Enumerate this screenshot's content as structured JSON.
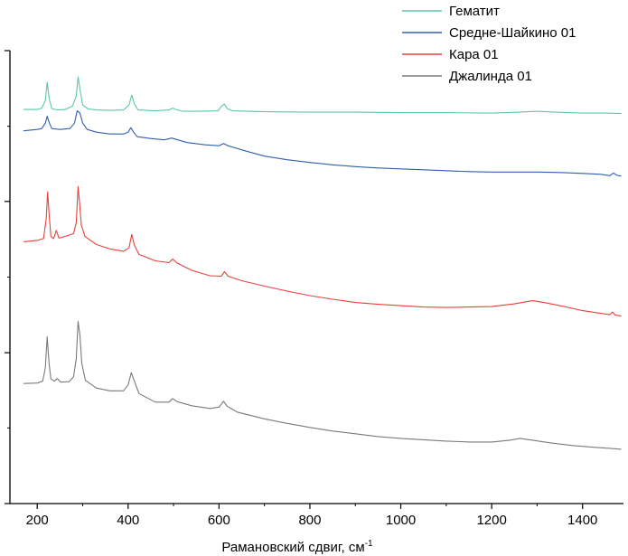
{
  "chart_data": {
    "type": "line",
    "title": "",
    "xlabel": "Рамановский сдвиг, см",
    "xlabel_superscript": "-1",
    "ylabel": "",
    "xlim": [
      140,
      1490
    ],
    "x_ticks": [
      200,
      400,
      600,
      800,
      1000,
      1200,
      1400
    ],
    "y_axis_tick_labels": false,
    "ylim": [
      0,
      100
    ],
    "legend_position": "top-right",
    "grid": false,
    "series": [
      {
        "name": "Гематит",
        "color": "#5cc8a0",
        "points": [
          [
            170,
            87.0
          ],
          [
            200,
            87.0
          ],
          [
            210,
            87.3
          ],
          [
            218,
            89.0
          ],
          [
            222,
            93.0
          ],
          [
            226,
            89.5
          ],
          [
            232,
            87.2
          ],
          [
            245,
            86.9
          ],
          [
            262,
            87.0
          ],
          [
            278,
            87.8
          ],
          [
            286,
            90.0
          ],
          [
            290,
            94.2
          ],
          [
            294,
            91.5
          ],
          [
            300,
            88.0
          ],
          [
            312,
            87.1
          ],
          [
            330,
            86.9
          ],
          [
            360,
            86.8
          ],
          [
            390,
            86.9
          ],
          [
            402,
            88.0
          ],
          [
            408,
            90.2
          ],
          [
            414,
            88.2
          ],
          [
            422,
            86.9
          ],
          [
            460,
            86.7
          ],
          [
            490,
            86.9
          ],
          [
            498,
            87.3
          ],
          [
            506,
            87.0
          ],
          [
            520,
            86.6
          ],
          [
            560,
            86.6
          ],
          [
            598,
            86.7
          ],
          [
            606,
            87.8
          ],
          [
            612,
            88.2
          ],
          [
            618,
            87.2
          ],
          [
            630,
            86.7
          ],
          [
            700,
            86.5
          ],
          [
            800,
            86.4
          ],
          [
            900,
            86.4
          ],
          [
            1000,
            86.3
          ],
          [
            1100,
            86.3
          ],
          [
            1200,
            86.2
          ],
          [
            1260,
            86.4
          ],
          [
            1300,
            86.6
          ],
          [
            1340,
            86.4
          ],
          [
            1400,
            86.2
          ],
          [
            1450,
            86.2
          ],
          [
            1485,
            86.1
          ]
        ]
      },
      {
        "name": "Средне-Шайкино 01",
        "color": "#3060b0",
        "points": [
          [
            170,
            82.3
          ],
          [
            200,
            82.6
          ],
          [
            210,
            82.8
          ],
          [
            218,
            84.0
          ],
          [
            222,
            85.5
          ],
          [
            226,
            84.2
          ],
          [
            232,
            82.8
          ],
          [
            250,
            82.6
          ],
          [
            272,
            82.8
          ],
          [
            282,
            84.0
          ],
          [
            288,
            86.7
          ],
          [
            294,
            86.2
          ],
          [
            300,
            84.0
          ],
          [
            310,
            82.6
          ],
          [
            330,
            82.0
          ],
          [
            360,
            81.6
          ],
          [
            390,
            81.6
          ],
          [
            400,
            82.0
          ],
          [
            406,
            83.0
          ],
          [
            412,
            82.0
          ],
          [
            420,
            81.0
          ],
          [
            450,
            80.6
          ],
          [
            480,
            80.3
          ],
          [
            496,
            80.7
          ],
          [
            506,
            80.4
          ],
          [
            530,
            79.7
          ],
          [
            570,
            79.2
          ],
          [
            600,
            79.0
          ],
          [
            610,
            79.5
          ],
          [
            620,
            79.0
          ],
          [
            660,
            77.8
          ],
          [
            700,
            76.7
          ],
          [
            750,
            75.9
          ],
          [
            800,
            75.3
          ],
          [
            850,
            74.8
          ],
          [
            900,
            74.4
          ],
          [
            950,
            74.1
          ],
          [
            1000,
            73.9
          ],
          [
            1050,
            73.7
          ],
          [
            1100,
            73.5
          ],
          [
            1150,
            73.3
          ],
          [
            1200,
            73.2
          ],
          [
            1250,
            73.2
          ],
          [
            1300,
            73.2
          ],
          [
            1350,
            73.1
          ],
          [
            1400,
            72.9
          ],
          [
            1440,
            72.7
          ],
          [
            1460,
            72.4
          ],
          [
            1468,
            73.0
          ],
          [
            1475,
            72.5
          ],
          [
            1485,
            72.3
          ]
        ]
      },
      {
        "name": "Кара 01",
        "color": "#e8403c",
        "points": [
          [
            170,
            57.8
          ],
          [
            200,
            58.1
          ],
          [
            214,
            58.5
          ],
          [
            220,
            63.0
          ],
          [
            223,
            68.8
          ],
          [
            226,
            64.0
          ],
          [
            230,
            59.0
          ],
          [
            236,
            58.5
          ],
          [
            242,
            60.3
          ],
          [
            248,
            58.6
          ],
          [
            262,
            59.0
          ],
          [
            280,
            59.6
          ],
          [
            286,
            62.0
          ],
          [
            290,
            70.0
          ],
          [
            293,
            66.5
          ],
          [
            297,
            61.5
          ],
          [
            305,
            59.0
          ],
          [
            330,
            57.2
          ],
          [
            360,
            56.2
          ],
          [
            390,
            55.7
          ],
          [
            402,
            56.5
          ],
          [
            408,
            59.4
          ],
          [
            414,
            57.0
          ],
          [
            424,
            55.0
          ],
          [
            460,
            53.6
          ],
          [
            490,
            53.2
          ],
          [
            498,
            54.0
          ],
          [
            508,
            53.1
          ],
          [
            540,
            51.5
          ],
          [
            580,
            50.3
          ],
          [
            605,
            50.2
          ],
          [
            612,
            51.2
          ],
          [
            620,
            50.2
          ],
          [
            650,
            49.2
          ],
          [
            700,
            48.0
          ],
          [
            750,
            46.9
          ],
          [
            800,
            45.9
          ],
          [
            850,
            45.1
          ],
          [
            900,
            44.4
          ],
          [
            950,
            44.0
          ],
          [
            1000,
            43.7
          ],
          [
            1050,
            43.4
          ],
          [
            1100,
            43.3
          ],
          [
            1150,
            43.4
          ],
          [
            1200,
            43.5
          ],
          [
            1250,
            44.1
          ],
          [
            1290,
            44.8
          ],
          [
            1320,
            44.3
          ],
          [
            1360,
            43.5
          ],
          [
            1400,
            42.6
          ],
          [
            1440,
            42.0
          ],
          [
            1460,
            41.7
          ],
          [
            1466,
            42.3
          ],
          [
            1472,
            41.6
          ],
          [
            1485,
            41.4
          ]
        ]
      },
      {
        "name": "Джалинда 01",
        "color": "#7a7a7a",
        "points": [
          [
            170,
            26.5
          ],
          [
            200,
            26.6
          ],
          [
            212,
            27.0
          ],
          [
            218,
            30.0
          ],
          [
            222,
            36.8
          ],
          [
            226,
            31.0
          ],
          [
            230,
            27.5
          ],
          [
            238,
            27.0
          ],
          [
            244,
            27.6
          ],
          [
            252,
            26.8
          ],
          [
            270,
            26.9
          ],
          [
            280,
            28.0
          ],
          [
            286,
            32.0
          ],
          [
            290,
            40.2
          ],
          [
            294,
            37.0
          ],
          [
            298,
            31.0
          ],
          [
            306,
            27.2
          ],
          [
            330,
            25.5
          ],
          [
            360,
            24.9
          ],
          [
            390,
            24.9
          ],
          [
            400,
            26.2
          ],
          [
            407,
            28.9
          ],
          [
            414,
            27.0
          ],
          [
            424,
            24.3
          ],
          [
            460,
            22.4
          ],
          [
            490,
            22.4
          ],
          [
            498,
            23.2
          ],
          [
            508,
            22.5
          ],
          [
            540,
            21.6
          ],
          [
            580,
            21.0
          ],
          [
            600,
            21.3
          ],
          [
            610,
            22.6
          ],
          [
            618,
            21.5
          ],
          [
            640,
            20.2
          ],
          [
            700,
            18.7
          ],
          [
            750,
            17.7
          ],
          [
            800,
            16.8
          ],
          [
            850,
            16.0
          ],
          [
            900,
            15.4
          ],
          [
            950,
            14.8
          ],
          [
            1000,
            14.4
          ],
          [
            1050,
            14.1
          ],
          [
            1100,
            13.8
          ],
          [
            1150,
            13.6
          ],
          [
            1200,
            13.6
          ],
          [
            1240,
            14.0
          ],
          [
            1262,
            14.4
          ],
          [
            1290,
            14.0
          ],
          [
            1330,
            13.4
          ],
          [
            1380,
            12.8
          ],
          [
            1430,
            12.4
          ],
          [
            1460,
            12.2
          ],
          [
            1485,
            12.0
          ]
        ]
      }
    ]
  }
}
